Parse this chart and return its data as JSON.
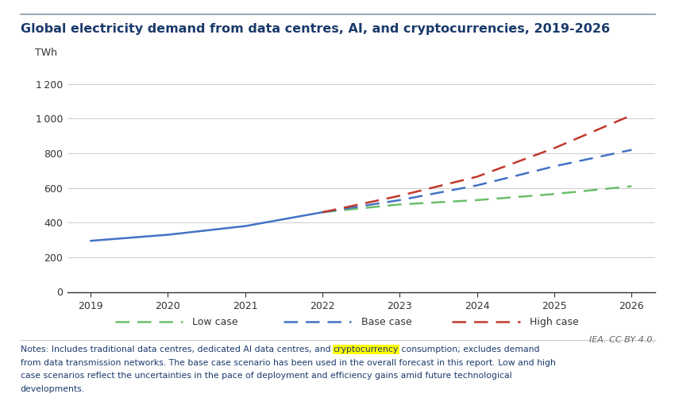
{
  "title": "Global electricity demand from data centres, AI, and cryptocurrencies, 2019-2026",
  "ylabel": "TWh",
  "background_color": "#ffffff",
  "plot_bg_color": "#ffffff",
  "title_color": "#1a3a6b",
  "title_fontsize": 11.5,
  "ylabel_fontsize": 9,
  "tick_fontsize": 9,
  "ylim": [
    0,
    1300
  ],
  "yticks": [
    0,
    200,
    400,
    600,
    800,
    1000,
    1200
  ],
  "xlim": [
    2018.7,
    2026.3
  ],
  "xticks": [
    2019,
    2020,
    2021,
    2022,
    2023,
    2024,
    2025,
    2026
  ],
  "years_solid": [
    2019,
    2020,
    2021,
    2022
  ],
  "years_dashed": [
    2022,
    2023,
    2024,
    2025,
    2026
  ],
  "base_solid": [
    295,
    330,
    380,
    460
  ],
  "low_dashed": [
    460,
    505,
    530,
    565,
    610
  ],
  "base_dashed": [
    460,
    530,
    615,
    725,
    820
  ],
  "high_dashed": [
    460,
    555,
    665,
    830,
    1020
  ],
  "color_low": "#6abf69",
  "color_base": "#4472c4",
  "color_high": "#c0392b",
  "legend_labels": [
    "Low case",
    "Base case",
    "High case"
  ],
  "source_text": "IEA. CC BY 4.0.",
  "notes_line1_before": "Notes: Includes traditional data centres, dedicated AI data centres, and ",
  "notes_line1_highlight": "cryptocurrency",
  "notes_line1_after": " consumption; excludes demand",
  "notes_line2": "from data transmission networks. The base case scenario has been used in the overall forecast in this report. Low and high",
  "notes_line3": "case scenarios reflect the uncertainties in the pace of deployment and efficiency gains amid future technological",
  "notes_line4": "developments.",
  "notes_color": "#1a3a6b",
  "source_color": "#666666",
  "grid_color": "#cccccc",
  "top_line_color": "#8899aa",
  "axis_color": "#333333",
  "separator_color": "#cccccc"
}
